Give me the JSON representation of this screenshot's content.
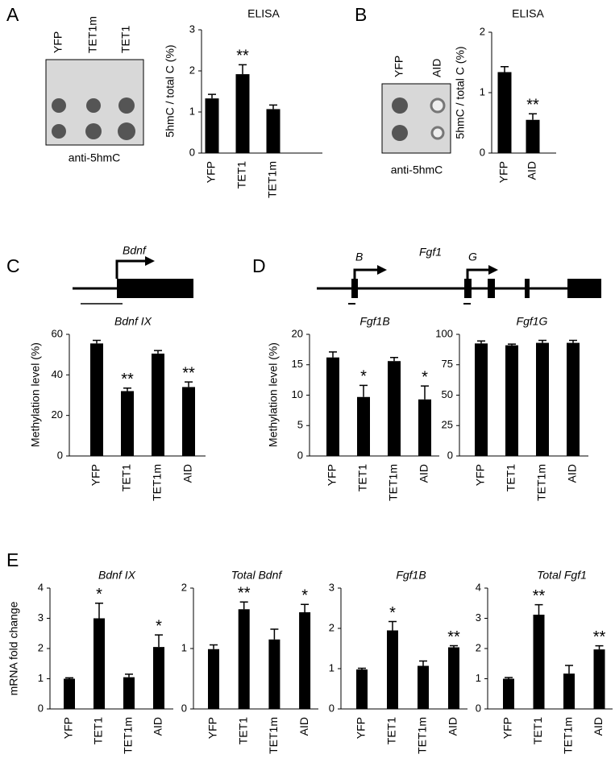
{
  "panel_labels": [
    "A",
    "B",
    "C",
    "D",
    "E"
  ],
  "blots": [
    {
      "lanes": [
        "YFP",
        "TET1m",
        "TET1"
      ],
      "label": "anti-5hmC"
    },
    {
      "lanes": [
        "YFP",
        "AID"
      ],
      "label": "anti-5hmC"
    }
  ],
  "gene_maps": [
    {
      "gene": "Bdnf"
    },
    {
      "gene": "Fgf1",
      "promoters": [
        "B",
        "G"
      ]
    }
  ],
  "chart_data": [
    {
      "type": "bar",
      "title": "ELISA",
      "y_label": "5hmC / total C (%)",
      "categories": [
        "YFP",
        "TET1",
        "TET1m"
      ],
      "values": [
        1.33,
        1.92,
        1.07
      ],
      "errors": [
        0.1,
        0.23,
        0.1
      ],
      "significance": [
        null,
        "**",
        null
      ],
      "color": "#000000",
      "ylim": [
        0,
        3
      ],
      "yticks": [
        0,
        1,
        2,
        3
      ]
    },
    {
      "type": "bar",
      "title": "ELISA",
      "y_label": "5hmC / total C (%)",
      "categories": [
        "YFP",
        "AID"
      ],
      "values": [
        1.34,
        0.55
      ],
      "errors": [
        0.09,
        0.1
      ],
      "significance": [
        null,
        "**"
      ],
      "color": "#000000",
      "ylim": [
        0,
        2
      ],
      "yticks": [
        0,
        1,
        2
      ]
    },
    {
      "type": "bar",
      "title": "Bdnf IX",
      "y_label": "Methylation level (%)",
      "categories": [
        "YFP",
        "TET1",
        "TET1m",
        "AID"
      ],
      "values": [
        55.5,
        32,
        50.5,
        34
      ],
      "errors": [
        1.5,
        1.5,
        1.5,
        2.5
      ],
      "significance": [
        null,
        "**",
        null,
        "**"
      ],
      "color": "#000000",
      "ylim": [
        0,
        60
      ],
      "yticks": [
        0,
        20,
        40,
        60
      ]
    },
    {
      "type": "bar",
      "title": "Fgf1B",
      "y_label": "Methylation level (%)",
      "categories": [
        "YFP",
        "TET1",
        "TET1m",
        "AID"
      ],
      "values": [
        16.2,
        9.7,
        15.6,
        9.3
      ],
      "errors": [
        0.9,
        1.9,
        0.6,
        2.2
      ],
      "significance": [
        null,
        "*",
        null,
        "*"
      ],
      "color": "#000000",
      "ylim": [
        0,
        20
      ],
      "yticks": [
        0,
        5,
        10,
        15,
        20
      ]
    },
    {
      "type": "bar",
      "title": "Fgf1G",
      "categories": [
        "YFP",
        "TET1",
        "TET1m",
        "AID"
      ],
      "values": [
        92.5,
        91,
        93,
        93
      ],
      "errors": [
        2,
        1,
        2,
        2
      ],
      "color": "#000000",
      "ylim": [
        0,
        100
      ],
      "yticks": [
        0,
        25,
        50,
        75,
        100
      ]
    },
    {
      "type": "bar",
      "title": "Bdnf IX",
      "y_label": "mRNA fold change",
      "categories": [
        "YFP",
        "TET1",
        "TET1m",
        "AID"
      ],
      "values": [
        1.0,
        3.0,
        1.05,
        2.05
      ],
      "errors": [
        0.03,
        0.5,
        0.1,
        0.4
      ],
      "significance": [
        null,
        "*",
        null,
        "*"
      ],
      "color": "#000000",
      "ylim": [
        0,
        4
      ],
      "yticks": [
        0,
        1,
        2,
        3,
        4
      ]
    },
    {
      "type": "bar",
      "title": "Total Bdnf",
      "categories": [
        "YFP",
        "TET1",
        "TET1m",
        "AID"
      ],
      "values": [
        0.99,
        1.65,
        1.15,
        1.6
      ],
      "errors": [
        0.07,
        0.12,
        0.17,
        0.13
      ],
      "significance": [
        null,
        "**",
        null,
        "*"
      ],
      "color": "#000000",
      "ylim": [
        0,
        2
      ],
      "yticks": [
        0,
        1,
        2
      ]
    },
    {
      "type": "bar",
      "title": "Fgf1B",
      "categories": [
        "YFP",
        "TET1",
        "TET1m",
        "AID"
      ],
      "values": [
        0.98,
        1.95,
        1.07,
        1.53
      ],
      "errors": [
        0.03,
        0.22,
        0.12,
        0.04
      ],
      "significance": [
        null,
        "*",
        null,
        "**"
      ],
      "color": "#000000",
      "ylim": [
        0,
        3
      ],
      "yticks": [
        0,
        1,
        2,
        3
      ]
    },
    {
      "type": "bar",
      "title": "Total Fgf1",
      "categories": [
        "YFP",
        "TET1",
        "TET1m",
        "AID"
      ],
      "values": [
        1.0,
        3.12,
        1.17,
        1.97
      ],
      "errors": [
        0.04,
        0.33,
        0.27,
        0.12
      ],
      "significance": [
        null,
        "**",
        null,
        "**"
      ],
      "color": "#000000",
      "ylim": [
        0,
        4
      ],
      "yticks": [
        0,
        1,
        2,
        3,
        4
      ]
    }
  ]
}
